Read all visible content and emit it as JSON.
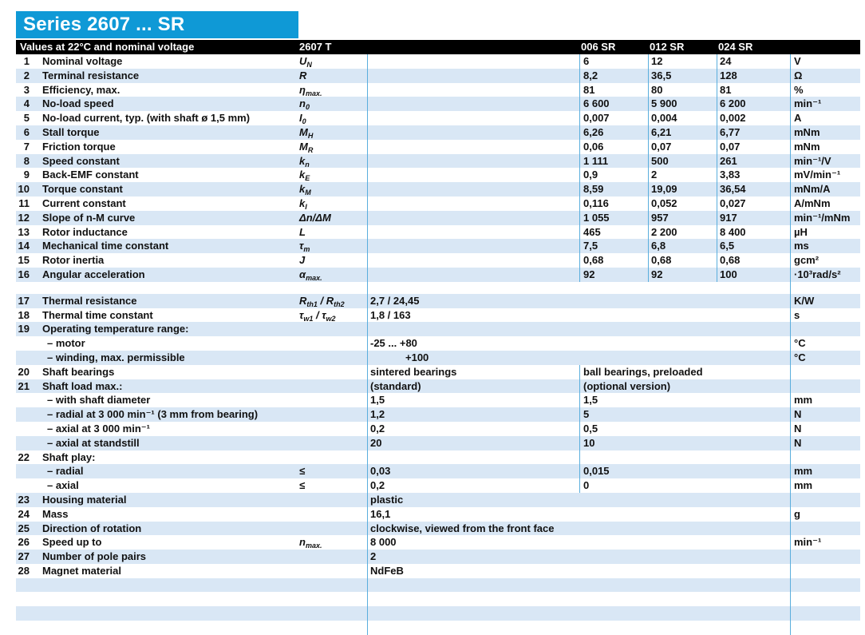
{
  "title": "Series 2607 ... SR",
  "header_bar": {
    "condition_label": "Values at 22°C and nominal voltage",
    "type_label": "2607 T",
    "model_columns": [
      "006 SR",
      "012 SR",
      "024 SR"
    ]
  },
  "colors": {
    "brand_blue": "#0f99d6",
    "stripe_blue": "#d9e7f5",
    "grid_line": "#5aaedd",
    "header_bg": "#000000"
  },
  "spec_rows": [
    {
      "num": "1",
      "label": "Nominal voltage",
      "symbol": [
        {
          "t": "U"
        },
        {
          "t": "N",
          "sub": true
        }
      ],
      "mode": "three",
      "values": [
        "6",
        "12",
        "24"
      ],
      "unit": "V",
      "shaded": false
    },
    {
      "num": "2",
      "label": "Terminal resistance",
      "symbol": [
        {
          "t": "R"
        }
      ],
      "mode": "three",
      "values": [
        "8,2",
        "36,5",
        "128"
      ],
      "unit": "Ω",
      "shaded": true
    },
    {
      "num": "3",
      "label": "Efficiency, max.",
      "symbol": [
        {
          "t": "η"
        },
        {
          "t": "max.",
          "sub": true
        }
      ],
      "mode": "three",
      "values": [
        "81",
        "80",
        "81"
      ],
      "unit": "%",
      "shaded": false
    },
    {
      "num": "4",
      "label": "No-load speed",
      "symbol": [
        {
          "t": "n"
        },
        {
          "t": "0",
          "sub": true
        }
      ],
      "mode": "three",
      "values": [
        "6 600",
        "5 900",
        "6 200"
      ],
      "unit": "min⁻¹",
      "shaded": true
    },
    {
      "num": "5",
      "label": "No-load current, typ. (with shaft ø 1,5 mm)",
      "symbol": [
        {
          "t": "I"
        },
        {
          "t": "0",
          "sub": true
        }
      ],
      "mode": "three",
      "values": [
        "0,007",
        "0,004",
        "0,002"
      ],
      "unit": "A",
      "shaded": false
    },
    {
      "num": "6",
      "label": "Stall torque",
      "symbol": [
        {
          "t": "M"
        },
        {
          "t": "H",
          "sub": true
        }
      ],
      "mode": "three",
      "values": [
        "6,26",
        "6,21",
        "6,77"
      ],
      "unit": "mNm",
      "shaded": true
    },
    {
      "num": "7",
      "label": "Friction torque",
      "symbol": [
        {
          "t": "M"
        },
        {
          "t": "R",
          "sub": true
        }
      ],
      "mode": "three",
      "values": [
        "0,06",
        "0,07",
        "0,07"
      ],
      "unit": "mNm",
      "shaded": false
    },
    {
      "num": "8",
      "label": "Speed constant",
      "symbol": [
        {
          "t": "k"
        },
        {
          "t": "n",
          "sub": true
        }
      ],
      "mode": "three",
      "values": [
        "1 111",
        "500",
        "261"
      ],
      "unit": "min⁻¹/V",
      "shaded": true
    },
    {
      "num": "9",
      "label": "Back-EMF constant",
      "symbol": [
        {
          "t": "k"
        },
        {
          "t": "E",
          "sub": true
        }
      ],
      "mode": "three",
      "values": [
        "0,9",
        "2",
        "3,83"
      ],
      "unit": "mV/min⁻¹",
      "shaded": false
    },
    {
      "num": "10",
      "label": "Torque constant",
      "symbol": [
        {
          "t": "k"
        },
        {
          "t": "M",
          "sub": true
        }
      ],
      "mode": "three",
      "values": [
        "8,59",
        "19,09",
        "36,54"
      ],
      "unit": "mNm/A",
      "shaded": true
    },
    {
      "num": "11",
      "label": "Current constant",
      "symbol": [
        {
          "t": "k"
        },
        {
          "t": "I",
          "sub": true
        }
      ],
      "mode": "three",
      "values": [
        "0,116",
        "0,052",
        "0,027"
      ],
      "unit": "A/mNm",
      "shaded": false
    },
    {
      "num": "12",
      "label": "Slope of n-M curve",
      "symbol": [
        {
          "t": "Δn/ΔM"
        }
      ],
      "mode": "three",
      "values": [
        "1 055",
        "957",
        "917"
      ],
      "unit": "min⁻¹/mNm",
      "shaded": true
    },
    {
      "num": "13",
      "label": "Rotor inductance",
      "symbol": [
        {
          "t": "L"
        }
      ],
      "mode": "three",
      "values": [
        "465",
        "2 200",
        "8 400"
      ],
      "unit": "µH",
      "shaded": false
    },
    {
      "num": "14",
      "label": "Mechanical time constant",
      "symbol": [
        {
          "t": "τ"
        },
        {
          "t": "m",
          "sub": true
        }
      ],
      "mode": "three",
      "values": [
        "7,5",
        "6,8",
        "6,5"
      ],
      "unit": "ms",
      "shaded": true
    },
    {
      "num": "15",
      "label": "Rotor inertia",
      "symbol": [
        {
          "t": "J"
        }
      ],
      "mode": "three",
      "values": [
        "0,68",
        "0,68",
        "0,68"
      ],
      "unit": "gcm²",
      "shaded": false
    },
    {
      "num": "16",
      "label": "Angular acceleration",
      "symbol": [
        {
          "t": "α"
        },
        {
          "t": "max.",
          "sub": true
        }
      ],
      "mode": "three",
      "values": [
        "92",
        "92",
        "100"
      ],
      "unit": "·10³rad/s²",
      "shaded": true
    },
    {
      "mode": "gap",
      "shaded": false
    },
    {
      "num": "17",
      "label": "Thermal resistance",
      "symbol": [
        {
          "t": "R"
        },
        {
          "t": "th1",
          "sub": true
        },
        {
          "t": " / "
        },
        {
          "t": "R"
        },
        {
          "t": "th2",
          "sub": true
        }
      ],
      "mode": "span",
      "value": "2,7 / 24,45",
      "unit": "K/W",
      "shaded": true
    },
    {
      "num": "18",
      "label": "Thermal time constant",
      "symbol": [
        {
          "t": "τ"
        },
        {
          "t": "w1",
          "sub": true
        },
        {
          "t": " / "
        },
        {
          "t": "τ"
        },
        {
          "t": "w2",
          "sub": true
        }
      ],
      "mode": "span",
      "value": "1,8 / 163",
      "unit": "s",
      "shaded": false
    },
    {
      "num": "19",
      "label": "Operating temperature range:",
      "mode": "span",
      "shaded": true
    },
    {
      "label": "– motor",
      "indent": true,
      "mode": "span",
      "value": "-25 ...  +80",
      "unit": "°C",
      "shaded": false
    },
    {
      "label": "– winding, max. permissible",
      "indent": true,
      "mode": "span",
      "value": "+100",
      "value_indent": 44,
      "unit": "°C",
      "shaded": true
    },
    {
      "num": "20",
      "label": "Shaft bearings",
      "mode": "two",
      "left": "sintered bearings",
      "right": "ball bearings, preloaded",
      "shaded": false
    },
    {
      "num": "21",
      "label": "Shaft load max.:",
      "mode": "two",
      "left": "(standard)",
      "right": "(optional version)",
      "shaded": true
    },
    {
      "label": "– with shaft diameter",
      "indent": true,
      "mode": "two",
      "left": "1,5",
      "right": "1,5",
      "unit": "mm",
      "shaded": false
    },
    {
      "label": "– radial at 3 000 min⁻¹ (3 mm from bearing)",
      "indent": true,
      "mode": "two",
      "left": "1,2",
      "right": "5",
      "unit": "N",
      "shaded": true
    },
    {
      "label": "– axial at 3 000 min⁻¹",
      "indent": true,
      "mode": "two",
      "left": "0,2",
      "right": "0,5",
      "unit": "N",
      "shaded": false
    },
    {
      "label": "– axial at standstill",
      "indent": true,
      "mode": "two",
      "left": "20",
      "right": "10",
      "unit": "N",
      "shaded": true
    },
    {
      "num": "22",
      "label": "Shaft play:",
      "mode": "two",
      "shaded": false
    },
    {
      "label": "– radial",
      "indent": true,
      "symbol": [
        {
          "t": "≤"
        }
      ],
      "mode": "two",
      "left": "0,03",
      "right": "0,015",
      "unit": "mm",
      "shaded": true
    },
    {
      "label": "– axial",
      "indent": true,
      "symbol": [
        {
          "t": "≤"
        }
      ],
      "mode": "two",
      "left": "0,2",
      "right": "0",
      "unit": "mm",
      "shaded": false
    },
    {
      "num": "23",
      "label": "Housing material",
      "mode": "span",
      "value": "plastic",
      "shaded": true
    },
    {
      "num": "24",
      "label": "Mass",
      "mode": "span",
      "value": "16,1",
      "unit": "g",
      "shaded": false
    },
    {
      "num": "25",
      "label": "Direction of rotation",
      "mode": "span",
      "value": "clockwise, viewed from the front face",
      "shaded": true
    },
    {
      "num": "26",
      "label": "Speed up to",
      "symbol": [
        {
          "t": "n"
        },
        {
          "t": "max.",
          "sub": true
        }
      ],
      "mode": "span",
      "value": "8 000",
      "unit": "min⁻¹",
      "shaded": false
    },
    {
      "num": "27",
      "label": "Number of pole pairs",
      "mode": "span",
      "value": "2",
      "shaded": true
    },
    {
      "num": "28",
      "label": "Magnet material",
      "mode": "span",
      "value": "NdFeB",
      "shaded": false
    },
    {
      "mode": "empty",
      "shaded": true
    },
    {
      "mode": "empty",
      "shaded": false
    },
    {
      "mode": "empty",
      "shaded": true
    },
    {
      "mode": "empty",
      "shaded": false
    }
  ]
}
